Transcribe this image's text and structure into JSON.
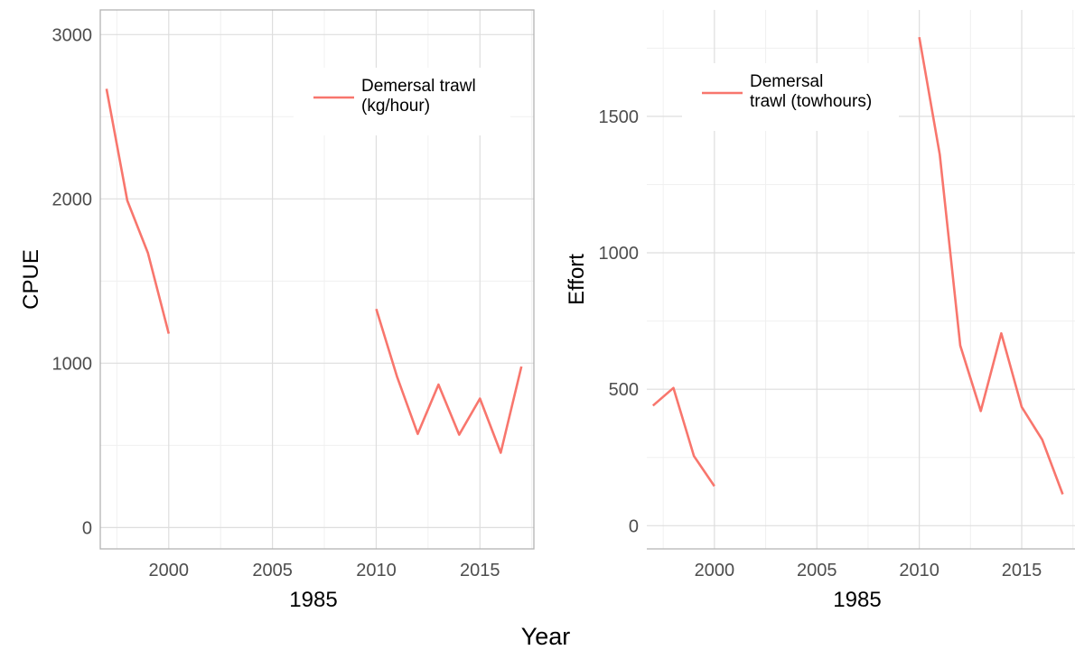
{
  "figure": {
    "xlabel": "Year"
  },
  "chart_data": [
    {
      "type": "line",
      "ylabel": "CPUE",
      "xlim": [
        1996.7,
        2017.6
      ],
      "ylim": [
        -130,
        3150
      ],
      "x_ticks": [
        2000,
        2005,
        2010,
        2015
      ],
      "y_ticks": [
        0,
        1000,
        2000,
        3000
      ],
      "x_extra_label": "1985",
      "grid": true,
      "legend_position": "top-right",
      "series": [
        {
          "name": "Demersal trawl\n (kg/hour)",
          "color": "#F8766D",
          "segments": [
            {
              "x": [
                1997,
                1998,
                1999,
                2000
              ],
              "y": [
                2670,
                1990,
                1670,
                1180
              ]
            },
            {
              "x": [
                2010,
                2011,
                2012,
                2013,
                2014,
                2015,
                2016,
                2017
              ],
              "y": [
                1330,
                920,
                570,
                870,
                565,
                785,
                455,
                980
              ]
            }
          ]
        }
      ]
    },
    {
      "type": "line",
      "ylabel": "Effort",
      "xlim": [
        1996.7,
        2017.6
      ],
      "ylim": [
        -85,
        1890
      ],
      "x_ticks": [
        2000,
        2005,
        2010,
        2015
      ],
      "y_ticks": [
        0,
        500,
        1000,
        1500
      ],
      "x_extra_label": "1985",
      "grid": true,
      "legend_position": "top-left",
      "series": [
        {
          "name": "Demersal\n  trawl (towhours)",
          "color": "#F8766D",
          "segments": [
            {
              "x": [
                1997,
                1998,
                1999,
                2000
              ],
              "y": [
                440,
                505,
                255,
                145
              ]
            },
            {
              "x": [
                2010,
                2011,
                2012,
                2013,
                2014,
                2015,
                2016,
                2017
              ],
              "y": [
                1790,
                1360,
                660,
                420,
                705,
                435,
                315,
                115
              ]
            }
          ]
        }
      ]
    }
  ]
}
